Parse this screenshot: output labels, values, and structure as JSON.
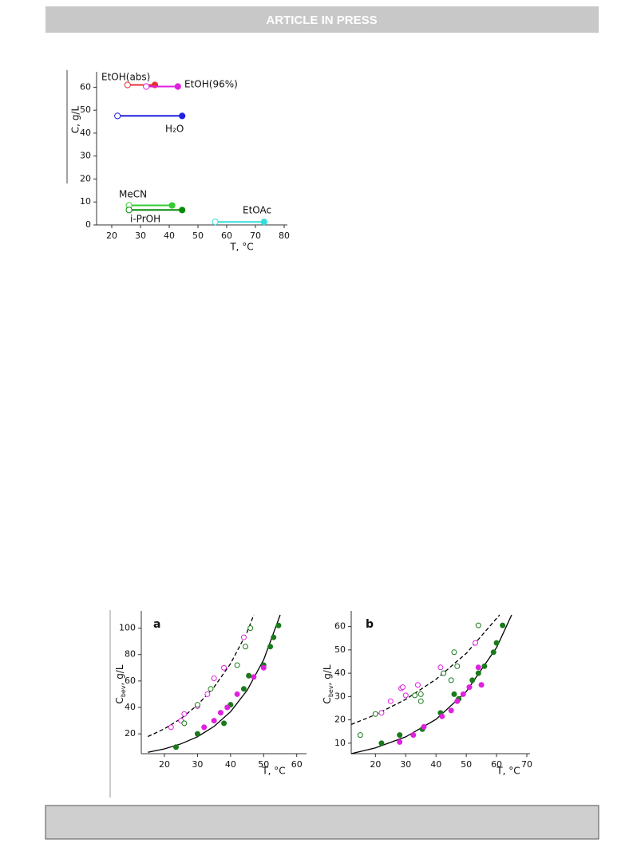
{
  "header": {
    "banner": "ARTICLE IN PRESS"
  },
  "chart_data": [
    {
      "type": "line",
      "xlabel": "T, °C",
      "ylabel": "C, g/L",
      "xlim": [
        15,
        80
      ],
      "ylim": [
        0,
        65
      ],
      "xticks": [
        20,
        30,
        40,
        50,
        60,
        70,
        80
      ],
      "yticks": [
        0,
        10,
        20,
        30,
        40,
        50,
        60
      ],
      "annotations": [
        "EtOH(abs)",
        "EtOH(96%)",
        "H₂O",
        "MeCN",
        "i-PrOH",
        "EtOAc"
      ],
      "series": [
        {
          "color": "#e83030",
          "markers": [
            "open",
            "filled"
          ],
          "x": [
            25.5,
            35
          ],
          "values": [
            61,
            61
          ]
        },
        {
          "color": "#e020e0",
          "markers": [
            "open",
            "filled"
          ],
          "x": [
            32,
            43
          ],
          "values": [
            60.3,
            60.3
          ]
        },
        {
          "color": "#2020e0",
          "markers": [
            "open",
            "filled"
          ],
          "x": [
            22,
            44.5
          ],
          "values": [
            47.5,
            47.5
          ]
        },
        {
          "color": "#33cc33",
          "markers": [
            "open",
            "filled"
          ],
          "x": [
            26,
            41
          ],
          "values": [
            8.5,
            8.5
          ]
        },
        {
          "color": "#0a8a0a",
          "markers": [
            "open",
            "filled"
          ],
          "x": [
            26,
            44.5
          ],
          "values": [
            6.5,
            6.5
          ]
        },
        {
          "color": "#33dddd",
          "markers": [
            "open",
            "filled"
          ],
          "x": [
            56,
            73
          ],
          "values": [
            1.3,
            1.3
          ]
        }
      ]
    },
    {
      "type": "scatter",
      "panel": "a",
      "xlabel": "T, °C",
      "ylabel": [
        "C",
        "bev",
        ", g/L"
      ],
      "xlim": [
        13,
        62
      ],
      "ylim": [
        5,
        110
      ],
      "xticks": [
        20,
        30,
        40,
        50,
        60
      ],
      "yticks": [
        20,
        40,
        60,
        80,
        100
      ],
      "series": [
        {
          "color": "#000000",
          "line": "solid",
          "marker": "none",
          "x": [
            15,
            20,
            25,
            30,
            35,
            40,
            45,
            50,
            55
          ],
          "values": [
            6,
            8.6,
            12.4,
            17.8,
            25.6,
            36.8,
            53,
            76,
            110
          ]
        },
        {
          "color": "#000000",
          "line": "dashed",
          "marker": "none",
          "x": [
            15,
            20,
            25,
            30,
            35,
            40,
            45,
            47
          ],
          "values": [
            18,
            23.8,
            31.5,
            41.8,
            55.3,
            73.2,
            97,
            110
          ]
        },
        {
          "color": "#1a7a1a",
          "line": "none",
          "marker": "filled",
          "x": [
            23.5,
            30,
            38,
            40,
            44,
            45.5,
            50,
            52,
            53,
            54.5
          ],
          "values": [
            10,
            20,
            28,
            42,
            54,
            64,
            72,
            86,
            93,
            102
          ]
        },
        {
          "color": "#e020e0",
          "line": "none",
          "marker": "filled",
          "x": [
            32,
            35,
            37,
            39,
            42,
            47,
            50
          ],
          "values": [
            25,
            30,
            36,
            40,
            50,
            63,
            70
          ]
        },
        {
          "color": "#e020e0",
          "line": "none",
          "marker": "open",
          "x": [
            22,
            25,
            26,
            30,
            33,
            35,
            38,
            44
          ],
          "values": [
            25,
            30,
            35,
            41,
            50,
            62,
            70,
            93
          ]
        },
        {
          "color": "#1a7a1a",
          "line": "none",
          "marker": "open",
          "x": [
            26,
            30,
            34,
            42,
            44.5,
            46
          ],
          "values": [
            28,
            42,
            54,
            72,
            86,
            100
          ]
        }
      ]
    },
    {
      "type": "scatter",
      "panel": "b",
      "xlabel": "T, °C",
      "ylabel": [
        "C",
        "bev",
        ", g/L"
      ],
      "xlim": [
        12,
        70
      ],
      "ylim": [
        5.5,
        65
      ],
      "xticks": [
        20,
        30,
        40,
        50,
        60,
        70
      ],
      "yticks": [
        10,
        20,
        30,
        40,
        50,
        60
      ],
      "series": [
        {
          "color": "#000000",
          "line": "solid",
          "marker": "none",
          "x": [
            12,
            20,
            30,
            40,
            50,
            60,
            65
          ],
          "values": [
            5.5,
            8,
            12.7,
            20.2,
            32.1,
            51,
            65
          ]
        },
        {
          "color": "#000000",
          "line": "dashed",
          "marker": "none",
          "x": [
            12,
            20,
            30,
            40,
            50,
            61
          ],
          "values": [
            18,
            22.2,
            28.8,
            37.4,
            48.5,
            65
          ]
        },
        {
          "color": "#1a7a1a",
          "line": "none",
          "marker": "filled",
          "x": [
            22,
            28,
            35.5,
            41.5,
            46,
            47.5,
            52,
            54,
            56,
            59,
            60,
            62
          ],
          "values": [
            10,
            13.5,
            16,
            23,
            31,
            29,
            37,
            40,
            43,
            49,
            53,
            60.5
          ]
        },
        {
          "color": "#e020e0",
          "line": "none",
          "marker": "filled",
          "x": [
            28,
            32.5,
            36,
            42,
            45,
            47,
            49,
            51,
            54,
            55
          ],
          "values": [
            10.5,
            13.5,
            17,
            21.5,
            24,
            28,
            31,
            34,
            42.5,
            35
          ]
        },
        {
          "color": "#e020e0",
          "line": "none",
          "marker": "open",
          "x": [
            22,
            25,
            28.5,
            29,
            30,
            34,
            41.5,
            53
          ],
          "values": [
            23,
            28,
            33.5,
            34,
            30.5,
            35,
            42.5,
            53
          ]
        },
        {
          "color": "#1a7a1a",
          "line": "none",
          "marker": "open",
          "x": [
            15,
            20,
            33,
            35,
            35,
            42.5,
            45,
            46,
            47,
            54
          ],
          "values": [
            13.5,
            22.5,
            30.5,
            28,
            31,
            40,
            37,
            49,
            43,
            60.5
          ]
        }
      ]
    }
  ]
}
